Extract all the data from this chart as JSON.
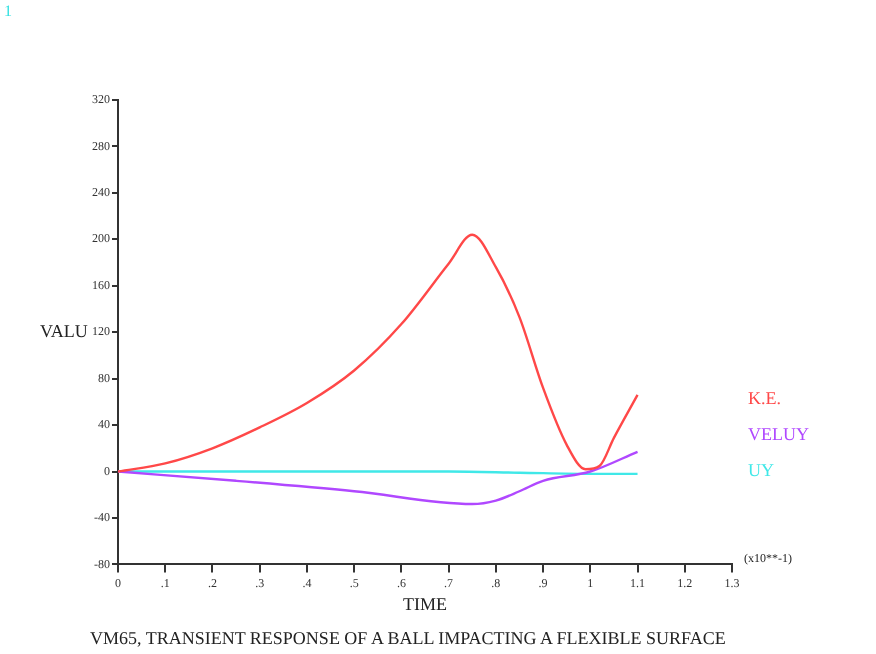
{
  "chart_data": {
    "type": "line",
    "title": "VM65, TRANSIENT RESPONSE OF A BALL IMPACTING A FLEXIBLE SURFACE",
    "xlabel": "TIME",
    "ylabel": "VALU",
    "annotations": [
      "1",
      "(x10**-1)"
    ],
    "legend": "right",
    "grid": false,
    "xlim": [
      0,
      1.3
    ],
    "xticks": [
      0,
      {
        "value": 0.1,
        "label": ".1"
      },
      {
        "value": 0.2,
        "label": ".2"
      },
      {
        "value": 0.3,
        "label": ".3"
      },
      {
        "value": 0.4,
        "label": ".4"
      },
      {
        "value": 0.5,
        "label": ".5"
      },
      {
        "value": 0.6,
        "label": ".6"
      },
      {
        "value": 0.7,
        "label": ".7"
      },
      {
        "value": 0.8,
        "label": ".8"
      },
      {
        "value": 0.9,
        "label": ".9"
      },
      1,
      1.1,
      1.2,
      1.3
    ],
    "ylim": [
      -80,
      320
    ],
    "yticks": [
      -80,
      -40,
      0,
      40,
      80,
      120,
      160,
      200,
      240,
      280,
      320
    ],
    "series": [
      {
        "name": "K.E.",
        "color": "#ff4848",
        "x": [
          0,
          0.1,
          0.2,
          0.3,
          0.4,
          0.5,
          0.6,
          0.7,
          0.75,
          0.8,
          0.85,
          0.9,
          0.95,
          0.99,
          1.02,
          1.05,
          1.1
        ],
        "values": [
          0,
          7,
          20,
          38,
          59,
          87,
          127,
          179,
          204,
          176,
          133,
          72,
          23,
          2,
          5,
          29,
          66
        ]
      },
      {
        "name": "VELUY",
        "color": "#b048ff",
        "x": [
          0,
          0.25,
          0.5,
          0.75,
          0.8,
          0.85,
          0.9,
          1.0,
          1.1
        ],
        "values": [
          0,
          -8,
          -17,
          -28,
          -25,
          -17,
          -8,
          0,
          17
        ]
      },
      {
        "name": "UY",
        "color": "#40e8e8",
        "x": [
          0,
          0.7,
          0.85,
          1.0,
          1.1
        ],
        "values": [
          0,
          0,
          -1,
          -2,
          -2
        ]
      }
    ]
  }
}
